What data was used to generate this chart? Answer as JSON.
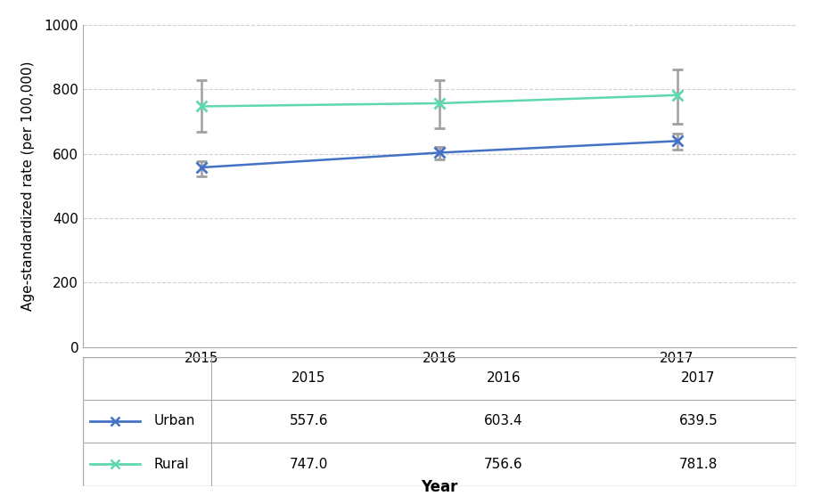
{
  "years": [
    2015,
    2016,
    2017
  ],
  "urban_values": [
    557.6,
    603.4,
    639.5
  ],
  "rural_values": [
    747.0,
    756.6,
    781.8
  ],
  "urban_ci_lower": [
    530,
    582,
    612
  ],
  "urban_ci_upper": [
    578,
    622,
    662
  ],
  "rural_ci_lower": [
    668,
    678,
    693
  ],
  "rural_ci_upper": [
    828,
    828,
    862
  ],
  "urban_color": "#4472C4",
  "rural_color": "#5FD8B0",
  "urban_label": "Urban",
  "rural_label": "Rural",
  "xlabel": "Year",
  "ylabel": "Age-standardized rate (per 100,000)",
  "ylim": [
    0,
    1000
  ],
  "yticks": [
    0,
    200,
    400,
    600,
    800,
    1000
  ],
  "xticks": [
    2015,
    2016,
    2017
  ],
  "background_color": "#ffffff",
  "grid_color": "#d0d0d0",
  "err_color": "#a0a0a0",
  "border_color": "#aaaaaa"
}
